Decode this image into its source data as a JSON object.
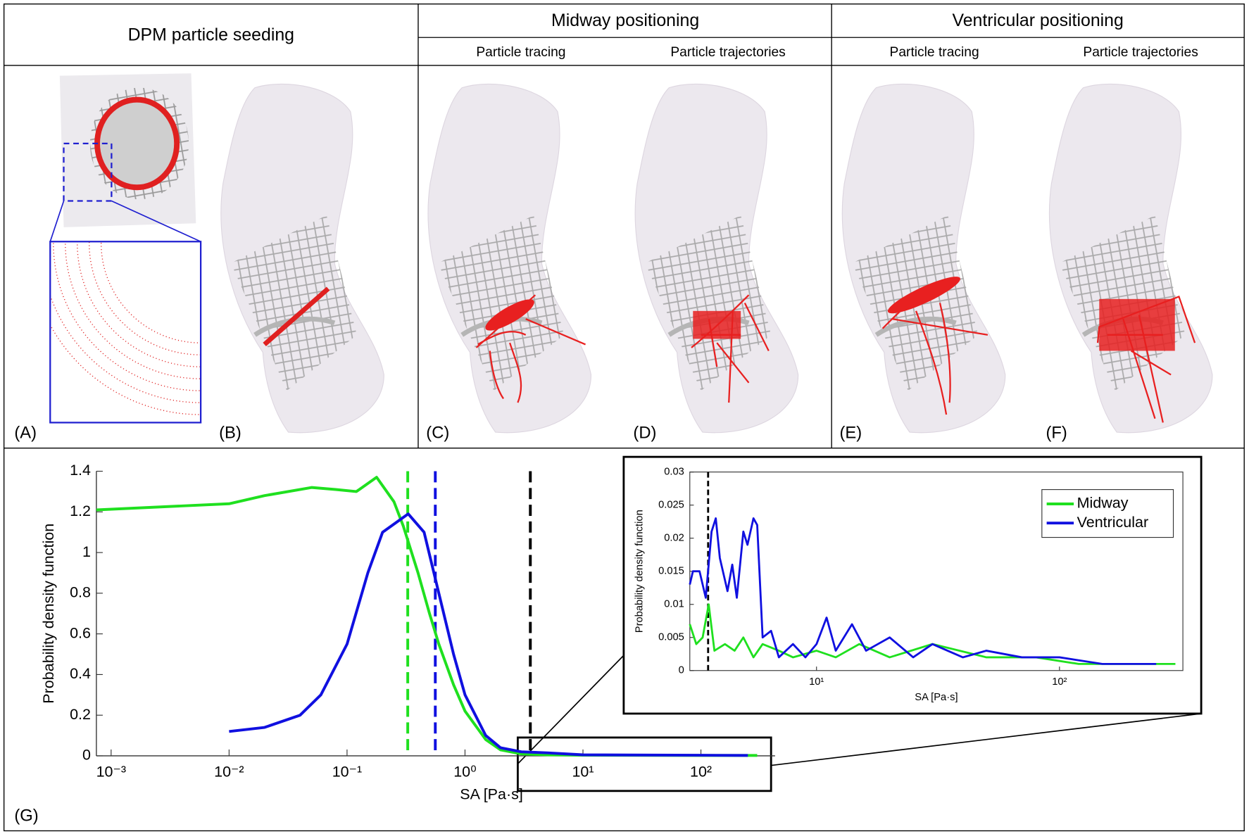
{
  "panels": {
    "headers": [
      "DPM particle seeding",
      "Midway positioning",
      "Ventricular positioning"
    ],
    "subheaders": [
      "Particle tracing",
      "Particle trajectories",
      "Particle tracing",
      "Particle trajectories"
    ],
    "labels": [
      "(A)",
      "(B)",
      "(C)",
      "(D)",
      "(E)",
      "(F)",
      "(G)"
    ]
  },
  "chart_data": [
    {
      "type": "line",
      "x_label": "SA [Pa·s]",
      "y_label": "Probability density function",
      "xscale": "log",
      "xlim": [
        0.00075,
        425
      ],
      "ylim": [
        0,
        1.4
      ],
      "xticks": [
        {
          "value": 0.001,
          "label": "10⁻³"
        },
        {
          "value": 0.01,
          "label": "10⁻²"
        },
        {
          "value": 0.1,
          "label": "10⁻¹"
        },
        {
          "value": 1,
          "label": "10⁰"
        },
        {
          "value": 10,
          "label": "10¹"
        },
        {
          "value": 100,
          "label": "10²"
        }
      ],
      "yticks": [
        0,
        0.2,
        0.4,
        0.6,
        0.8,
        1,
        1.2,
        1.4
      ],
      "series": [
        {
          "color": "#1fe01f",
          "x": [
            0.00075,
            0.01,
            0.02,
            0.05,
            0.08,
            0.12,
            0.178,
            0.25,
            0.3,
            0.4,
            0.5,
            0.6,
            0.8,
            1,
            1.5,
            2,
            3,
            5,
            10,
            100,
            300
          ],
          "values": [
            1.21,
            1.24,
            1.28,
            1.32,
            1.31,
            1.3,
            1.37,
            1.25,
            1.13,
            0.9,
            0.7,
            0.55,
            0.35,
            0.22,
            0.08,
            0.03,
            0.01,
            0.005,
            0.003,
            0.002,
            0.002
          ]
        },
        {
          "color": "#1010e0",
          "x": [
            0.01,
            0.02,
            0.04,
            0.06,
            0.1,
            0.15,
            0.2,
            0.33,
            0.45,
            0.6,
            0.8,
            1,
            1.5,
            2,
            3,
            5,
            10,
            100,
            250
          ],
          "values": [
            0.12,
            0.14,
            0.2,
            0.3,
            0.55,
            0.9,
            1.1,
            1.19,
            1.1,
            0.8,
            0.5,
            0.3,
            0.1,
            0.04,
            0.02,
            0.015,
            0.005,
            0.003,
            0.002
          ]
        }
      ],
      "reference_lines": [
        {
          "x": 0.327,
          "color": "#1fe01f"
        },
        {
          "x": 0.56,
          "color": "#1010e0"
        },
        {
          "x": 3.58,
          "color": "#000000"
        }
      ]
    },
    {
      "type": "line",
      "x_label": "SA [Pa·s]",
      "y_label": "Probability density function",
      "xscale": "log",
      "xlim": [
        3.01,
        322
      ],
      "ylim": [
        0,
        0.03
      ],
      "xticks": [
        {
          "value": 10,
          "label": "10¹"
        },
        {
          "value": 100,
          "label": "10²"
        }
      ],
      "yticks": [
        0,
        0.005,
        0.01,
        0.015,
        0.02,
        0.025,
        0.03
      ],
      "legend": "upper right",
      "series": [
        {
          "name": "Midway",
          "color": "#1fe01f",
          "x": [
            3.01,
            3.2,
            3.4,
            3.6,
            3.8,
            4.2,
            4.6,
            5,
            5.5,
            6,
            7,
            8,
            10,
            12,
            15,
            20,
            30,
            50,
            80,
            120,
            200,
            300
          ],
          "values": [
            0.007,
            0.004,
            0.005,
            0.01,
            0.003,
            0.004,
            0.003,
            0.005,
            0.002,
            0.004,
            0.003,
            0.002,
            0.003,
            0.002,
            0.004,
            0.002,
            0.004,
            0.002,
            0.002,
            0.001,
            0.001,
            0.001
          ]
        },
        {
          "name": "Ventricular",
          "color": "#1010e0",
          "x": [
            3.01,
            3.1,
            3.3,
            3.5,
            3.7,
            3.85,
            4,
            4.3,
            4.5,
            4.7,
            5,
            5.2,
            5.5,
            5.7,
            6,
            6.5,
            7,
            8,
            9,
            10,
            11,
            12,
            14,
            16,
            20,
            25,
            30,
            40,
            50,
            70,
            100,
            150,
            200,
            250
          ],
          "values": [
            0.013,
            0.015,
            0.015,
            0.011,
            0.021,
            0.023,
            0.017,
            0.012,
            0.016,
            0.011,
            0.021,
            0.019,
            0.023,
            0.022,
            0.005,
            0.006,
            0.002,
            0.004,
            0.002,
            0.004,
            0.008,
            0.003,
            0.007,
            0.003,
            0.005,
            0.002,
            0.004,
            0.002,
            0.003,
            0.002,
            0.002,
            0.001,
            0.001,
            0.001
          ]
        }
      ],
      "reference_lines": [
        {
          "x": 3.58,
          "color": "#000000"
        }
      ]
    }
  ]
}
